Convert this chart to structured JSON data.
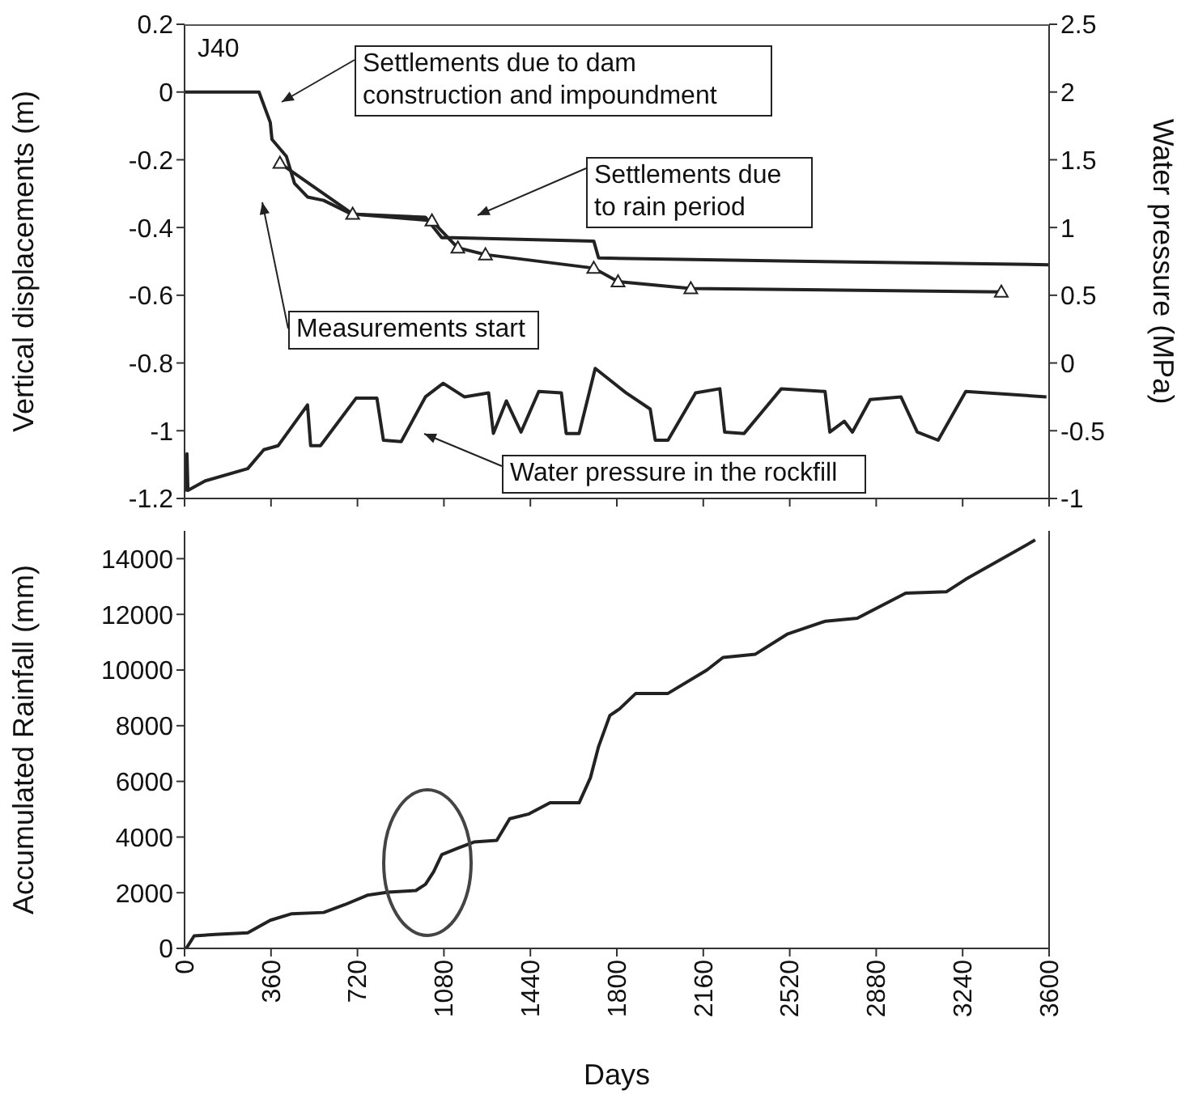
{
  "chart_data": [
    {
      "type": "line",
      "ylabel": "Vertical displacements (m)",
      "y2label": "Water pressure (MPa)",
      "xlim": [
        0,
        3600
      ],
      "xticks": [
        0,
        360,
        720,
        1080,
        1440,
        1800,
        2160,
        2520,
        2880,
        3240,
        3600
      ],
      "ylim": [
        -1.2,
        0.2
      ],
      "yticks": [
        0.2,
        0,
        -0.2,
        -0.4,
        -0.6,
        -0.8,
        -1,
        -1.2
      ],
      "y2lim": [
        -1,
        2.5
      ],
      "y2ticks": [
        2.5,
        2,
        1.5,
        1,
        0.5,
        0,
        -0.5,
        -1
      ],
      "tick_labels": "y",
      "line_style": "solid",
      "annotations": [
        "J40",
        "Settlements due to dam construction and impoundment",
        "Settlements due to rain period",
        "Measurements start",
        "Water pressure in the rockfill"
      ],
      "series": [
        {
          "color": "#222222",
          "marker": "none",
          "x": [
            0,
            310,
            357,
            364,
            424,
            458,
            512,
            579,
            694,
            1003,
            1071,
            1118,
            1704,
            1724,
            2600,
            3600
          ],
          "values": [
            0,
            0,
            -0.09,
            -0.14,
            -0.19,
            -0.27,
            -0.31,
            -0.32,
            -0.36,
            -0.37,
            -0.43,
            -0.43,
            -0.44,
            -0.49,
            -0.5,
            -0.51
          ]
        },
        {
          "color": "#222222",
          "marker": "triangle",
          "x": [
            397,
            700,
            1030,
            1138,
            1253,
            1704,
            1805,
            2108,
            3401
          ],
          "values": [
            -0.21,
            -0.36,
            -0.38,
            -0.46,
            -0.48,
            -0.52,
            -0.56,
            -0.58,
            -0.59
          ]
        },
        {
          "color": "#222222",
          "marker": "none",
          "axis": "y2",
          "x": [
            7,
            10,
            14,
            86,
            263,
            330,
            390,
            512,
            525,
            566,
            714,
            801,
            828,
            902,
            1003,
            1077,
            1165,
            1266,
            1286,
            1340,
            1401,
            1475,
            1569,
            1589,
            1643,
            1710,
            1838,
            1939,
            1960,
            2013,
            2128,
            2229,
            2249,
            2330,
            2485,
            2667,
            2687,
            2747,
            2781,
            2855,
            2983,
            3051,
            3138,
            3253,
            3589
          ],
          "values": [
            -0.95,
            -0.67,
            -0.94,
            -0.87,
            -0.78,
            -0.64,
            -0.61,
            -0.31,
            -0.61,
            -0.61,
            -0.26,
            -0.26,
            -0.57,
            -0.58,
            -0.25,
            -0.15,
            -0.25,
            -0.22,
            -0.52,
            -0.28,
            -0.51,
            -0.21,
            -0.22,
            -0.52,
            -0.52,
            -0.04,
            -0.22,
            -0.34,
            -0.57,
            -0.57,
            -0.22,
            -0.19,
            -0.51,
            -0.52,
            -0.19,
            -0.21,
            -0.51,
            -0.43,
            -0.51,
            -0.27,
            -0.25,
            -0.51,
            -0.57,
            -0.21,
            -0.25
          ]
        }
      ]
    },
    {
      "type": "line",
      "xlabel": "Days",
      "ylabel": "Accumulated Rainfall (mm)",
      "xlim": [
        0,
        3600
      ],
      "xticks": [
        0,
        360,
        720,
        1080,
        1440,
        1800,
        2160,
        2520,
        2880,
        3240,
        3600
      ],
      "ylim": [
        0,
        15000
      ],
      "yticks": [
        0,
        2000,
        4000,
        6000,
        8000,
        10000,
        12000,
        14000
      ],
      "marker": "none",
      "line_style": "solid",
      "series": [
        {
          "color": "#222222",
          "x": [
            7,
            40,
            128,
            263,
            357,
            444,
            579,
            667,
            761,
            848,
            963,
            1003,
            1037,
            1071,
            1138,
            1205,
            1300,
            1354,
            1434,
            1522,
            1643,
            1690,
            1724,
            1771,
            1811,
            1879,
            2013,
            2175,
            2242,
            2377,
            2512,
            2667,
            2801,
            3003,
            3172,
            3253,
            3542
          ],
          "values": [
            0,
            450,
            500,
            560,
            1010,
            1240,
            1290,
            1570,
            1910,
            2020,
            2080,
            2300,
            2750,
            3370,
            3600,
            3820,
            3880,
            4660,
            4830,
            5230,
            5230,
            6130,
            7250,
            8370,
            8600,
            9160,
            9160,
            10000,
            10450,
            10570,
            11300,
            11750,
            11860,
            12760,
            12810,
            13260,
            14670
          ]
        }
      ]
    }
  ]
}
